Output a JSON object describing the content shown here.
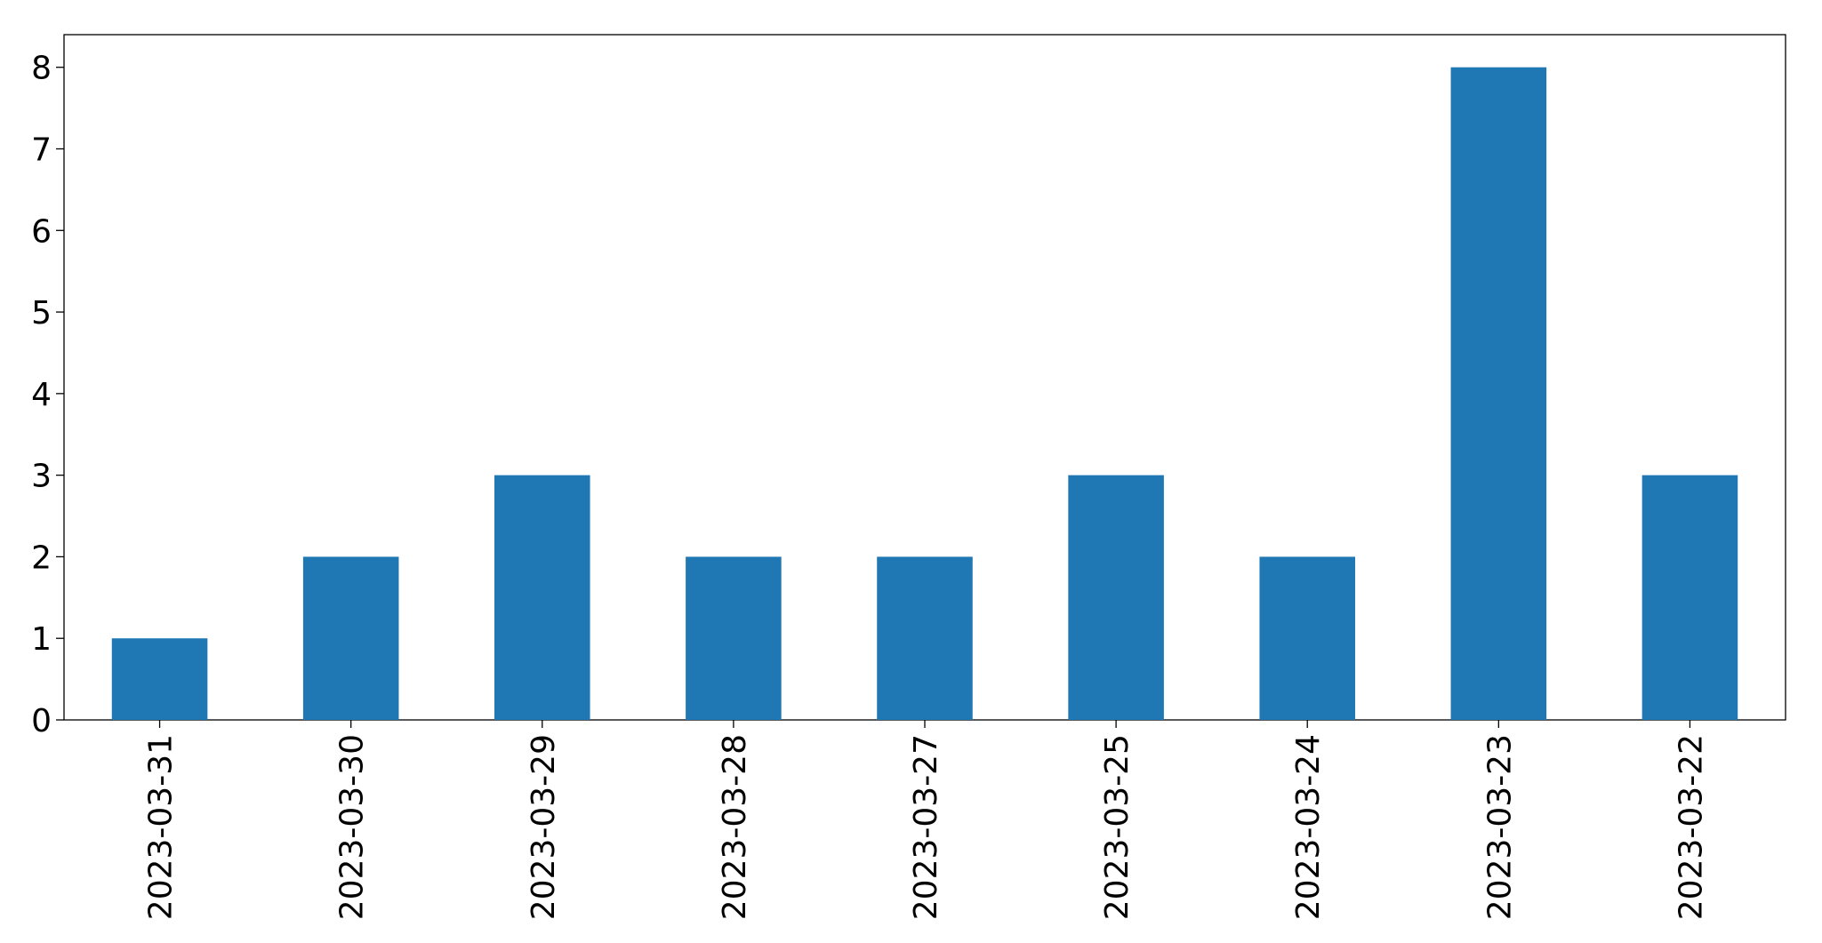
{
  "chart_data": {
    "type": "bar",
    "categories": [
      "2023-03-31",
      "2023-03-30",
      "2023-03-29",
      "2023-03-28",
      "2023-03-27",
      "2023-03-25",
      "2023-03-24",
      "2023-03-23",
      "2023-03-22"
    ],
    "values": [
      1,
      2,
      3,
      2,
      2,
      3,
      2,
      8,
      3
    ],
    "color": "#1f77b4",
    "ylim": [
      0,
      8.4
    ],
    "yticks": [
      0,
      1,
      2,
      3,
      4,
      5,
      6,
      7,
      8
    ],
    "grid": false
  }
}
